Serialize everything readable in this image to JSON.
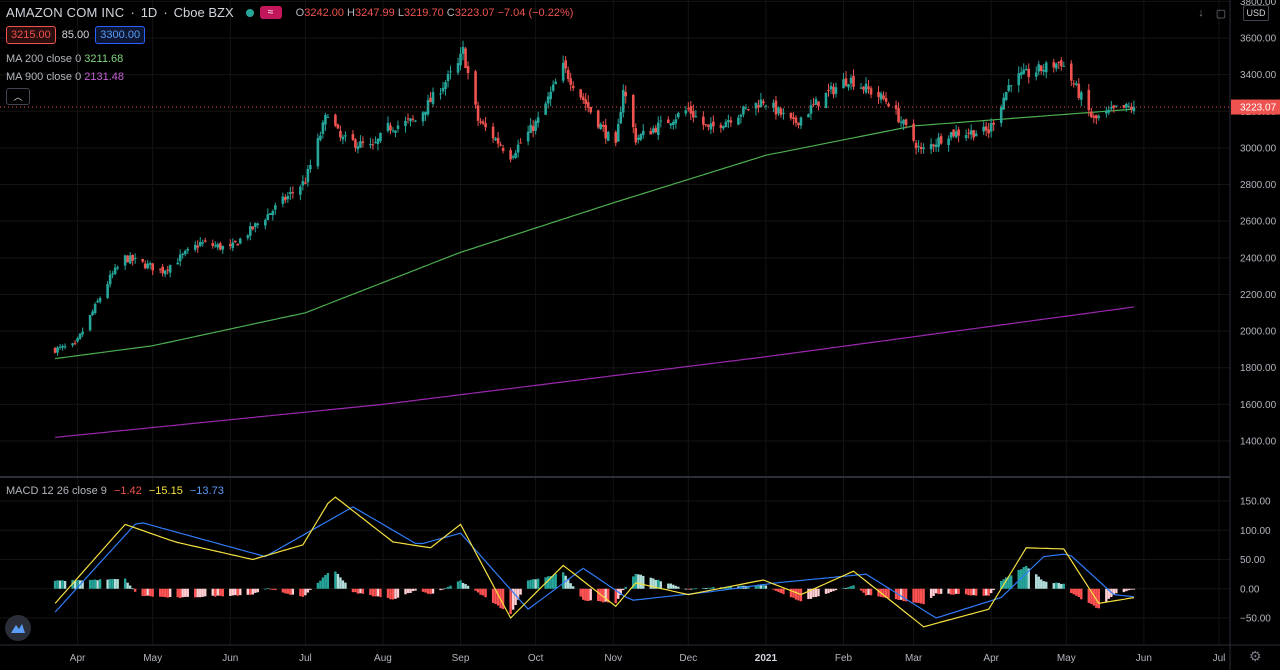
{
  "header": {
    "symbol": "AMAZON COM INC",
    "interval": "1D",
    "exchange": "Cboe BZX",
    "open_label": "O",
    "open": "3242.00",
    "high_label": "H",
    "high": "3247.99",
    "low_label": "L",
    "low": "3219.70",
    "close_label": "C",
    "close": "3223.07",
    "change": "−7.04 (−0.22%)"
  },
  "quote": {
    "bid": "3215.00",
    "spread": "85.00",
    "ask": "3300.00"
  },
  "indicators": {
    "ma200_label": "MA 200 close 0",
    "ma200_value": "3211.68",
    "ma900_label": "MA 900 close 0",
    "ma900_value": "2131.48"
  },
  "macd": {
    "label": "MACD 12 26 close 9",
    "hist_value": "−1.42",
    "macd_value": "−15.15",
    "signal_value": "−13.73"
  },
  "axis": {
    "currency": "USD",
    "last_price_tag": "3223.07"
  },
  "colors": {
    "up": "#26a69a",
    "down": "#ef5350",
    "ma200": "#4caf50",
    "ma900": "#9c27b0",
    "macd": "#f5e140",
    "signal": "#2f7bf7"
  },
  "chart_data": {
    "type": "candlestick",
    "x_ticks": [
      "Apr",
      "May",
      "Jun",
      "Jul",
      "Aug",
      "Sep",
      "Oct",
      "Nov",
      "Dec",
      "2021",
      "Feb",
      "Mar",
      "Apr",
      "May",
      "Jun",
      "Jul"
    ],
    "price_ticks": [
      "3800.00",
      "3600.00",
      "3400.00",
      "3200.00",
      "3000.00",
      "2800.00",
      "2600.00",
      "2400.00",
      "2200.00",
      "2000.00",
      "1800.00",
      "1600.00",
      "1400.00"
    ],
    "price_ylim": [
      1300,
      3820
    ],
    "macd_ticks": [
      "150.00",
      "100.00",
      "50.00",
      "0.00",
      "−50.00"
    ],
    "macd_ylim": [
      -75,
      165
    ],
    "close_anchors": [
      {
        "date": "2020-03-23",
        "close": 1900
      },
      {
        "date": "2020-03-31",
        "close": 1920
      },
      {
        "date": "2020-04-14",
        "close": 2290
      },
      {
        "date": "2020-04-20",
        "close": 2400
      },
      {
        "date": "2020-05-05",
        "close": 2330
      },
      {
        "date": "2020-05-20",
        "close": 2480
      },
      {
        "date": "2020-06-01",
        "close": 2450
      },
      {
        "date": "2020-06-22",
        "close": 2710
      },
      {
        "date": "2020-07-01",
        "close": 2820
      },
      {
        "date": "2020-07-10",
        "close": 3200
      },
      {
        "date": "2020-07-15",
        "close": 3050
      },
      {
        "date": "2020-07-28",
        "close": 3000
      },
      {
        "date": "2020-08-03",
        "close": 3110
      },
      {
        "date": "2020-08-14",
        "close": 3150
      },
      {
        "date": "2020-08-31",
        "close": 3450
      },
      {
        "date": "2020-09-02",
        "close": 3530
      },
      {
        "date": "2020-09-08",
        "close": 3150
      },
      {
        "date": "2020-09-21",
        "close": 2960
      },
      {
        "date": "2020-10-02",
        "close": 3150
      },
      {
        "date": "2020-10-12",
        "close": 3440
      },
      {
        "date": "2020-10-23",
        "close": 3200
      },
      {
        "date": "2020-11-02",
        "close": 3000
      },
      {
        "date": "2020-11-05",
        "close": 3330
      },
      {
        "date": "2020-11-10",
        "close": 3050
      },
      {
        "date": "2020-12-01",
        "close": 3210
      },
      {
        "date": "2020-12-09",
        "close": 3100
      },
      {
        "date": "2020-12-31",
        "close": 3260
      },
      {
        "date": "2021-01-12",
        "close": 3130
      },
      {
        "date": "2021-01-25",
        "close": 3290
      },
      {
        "date": "2021-02-03",
        "close": 3380
      },
      {
        "date": "2021-02-19",
        "close": 3250
      },
      {
        "date": "2021-03-04",
        "close": 2980
      },
      {
        "date": "2021-03-15",
        "close": 3080
      },
      {
        "date": "2021-03-31",
        "close": 3090
      },
      {
        "date": "2021-04-09",
        "close": 3370
      },
      {
        "date": "2021-04-29",
        "close": 3470
      },
      {
        "date": "2021-05-12",
        "close": 3150
      },
      {
        "date": "2021-05-21",
        "close": 3210
      },
      {
        "date": "2021-05-28",
        "close": 3223
      }
    ],
    "ma200_anchors": [
      {
        "date": "2020-03-23",
        "value": 1850
      },
      {
        "date": "2020-05-01",
        "value": 1920
      },
      {
        "date": "2020-07-01",
        "value": 2100
      },
      {
        "date": "2020-09-01",
        "value": 2430
      },
      {
        "date": "2020-11-01",
        "value": 2700
      },
      {
        "date": "2021-01-01",
        "value": 2960
      },
      {
        "date": "2021-03-01",
        "value": 3120
      },
      {
        "date": "2021-05-28",
        "value": 3211.68
      }
    ],
    "ma900_anchors": [
      {
        "date": "2020-03-23",
        "value": 1420
      },
      {
        "date": "2020-08-01",
        "value": 1600
      },
      {
        "date": "2021-01-01",
        "value": 1860
      },
      {
        "date": "2021-05-28",
        "value": 2131.48
      }
    ],
    "macd_anchors": [
      {
        "date": "2020-03-23",
        "value": -25
      },
      {
        "date": "2020-04-20",
        "value": 110
      },
      {
        "date": "2020-05-10",
        "value": 80
      },
      {
        "date": "2020-06-10",
        "value": 50
      },
      {
        "date": "2020-06-30",
        "value": 75
      },
      {
        "date": "2020-07-12",
        "value": 160
      },
      {
        "date": "2020-08-05",
        "value": 80
      },
      {
        "date": "2020-08-20",
        "value": 70
      },
      {
        "date": "2020-09-01",
        "value": 110
      },
      {
        "date": "2020-09-21",
        "value": -50
      },
      {
        "date": "2020-10-12",
        "value": 40
      },
      {
        "date": "2020-11-02",
        "value": -30
      },
      {
        "date": "2020-11-10",
        "value": 10
      },
      {
        "date": "2020-12-01",
        "value": -10
      },
      {
        "date": "2020-12-31",
        "value": 15
      },
      {
        "date": "2021-01-15",
        "value": -10
      },
      {
        "date": "2021-02-05",
        "value": 30
      },
      {
        "date": "2021-03-05",
        "value": -65
      },
      {
        "date": "2021-03-31",
        "value": -35
      },
      {
        "date": "2021-04-15",
        "value": 70
      },
      {
        "date": "2021-04-30",
        "value": 68
      },
      {
        "date": "2021-05-14",
        "value": -25
      },
      {
        "date": "2021-05-28",
        "value": -15.15
      }
    ],
    "signal_anchors": [
      {
        "date": "2020-03-23",
        "value": -40
      },
      {
        "date": "2020-04-25",
        "value": 115
      },
      {
        "date": "2020-06-15",
        "value": 55
      },
      {
        "date": "2020-07-20",
        "value": 140
      },
      {
        "date": "2020-08-15",
        "value": 75
      },
      {
        "date": "2020-09-01",
        "value": 95
      },
      {
        "date": "2020-09-28",
        "value": -35
      },
      {
        "date": "2020-10-20",
        "value": 35
      },
      {
        "date": "2020-11-08",
        "value": -20
      },
      {
        "date": "2020-12-10",
        "value": -5
      },
      {
        "date": "2021-01-05",
        "value": 10
      },
      {
        "date": "2021-02-10",
        "value": 25
      },
      {
        "date": "2021-03-10",
        "value": -50
      },
      {
        "date": "2021-04-05",
        "value": -15
      },
      {
        "date": "2021-04-22",
        "value": 55
      },
      {
        "date": "2021-05-02",
        "value": 60
      },
      {
        "date": "2021-05-20",
        "value": -10
      },
      {
        "date": "2021-05-28",
        "value": -13.73
      }
    ],
    "last_hist": -1.42
  }
}
